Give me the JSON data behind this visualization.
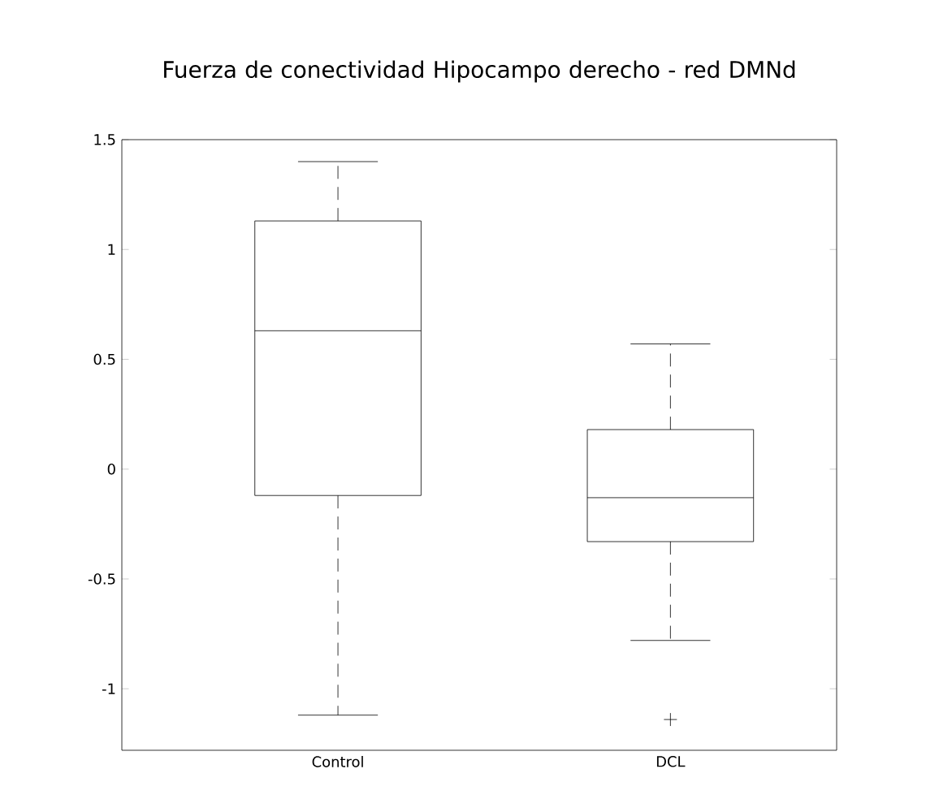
{
  "chart_data": {
    "type": "box",
    "title": "Fuerza de conectividad Hipocampo derecho - red DMNd",
    "categories": [
      "Control",
      "DCL"
    ],
    "boxes": [
      {
        "low": -1.12,
        "q1": -0.12,
        "median": 0.63,
        "q3": 1.13,
        "high": 1.4
      },
      {
        "low": -0.78,
        "q1": -0.33,
        "median": -0.13,
        "q3": 0.18,
        "high": 0.57,
        "outliers": [
          -1.14
        ]
      }
    ],
    "color": "#000000",
    "ylim": [
      -1.28,
      1.5
    ],
    "yticks": [
      -1,
      -0.5,
      0,
      0.5,
      1,
      1.5
    ],
    "grid": false
  }
}
